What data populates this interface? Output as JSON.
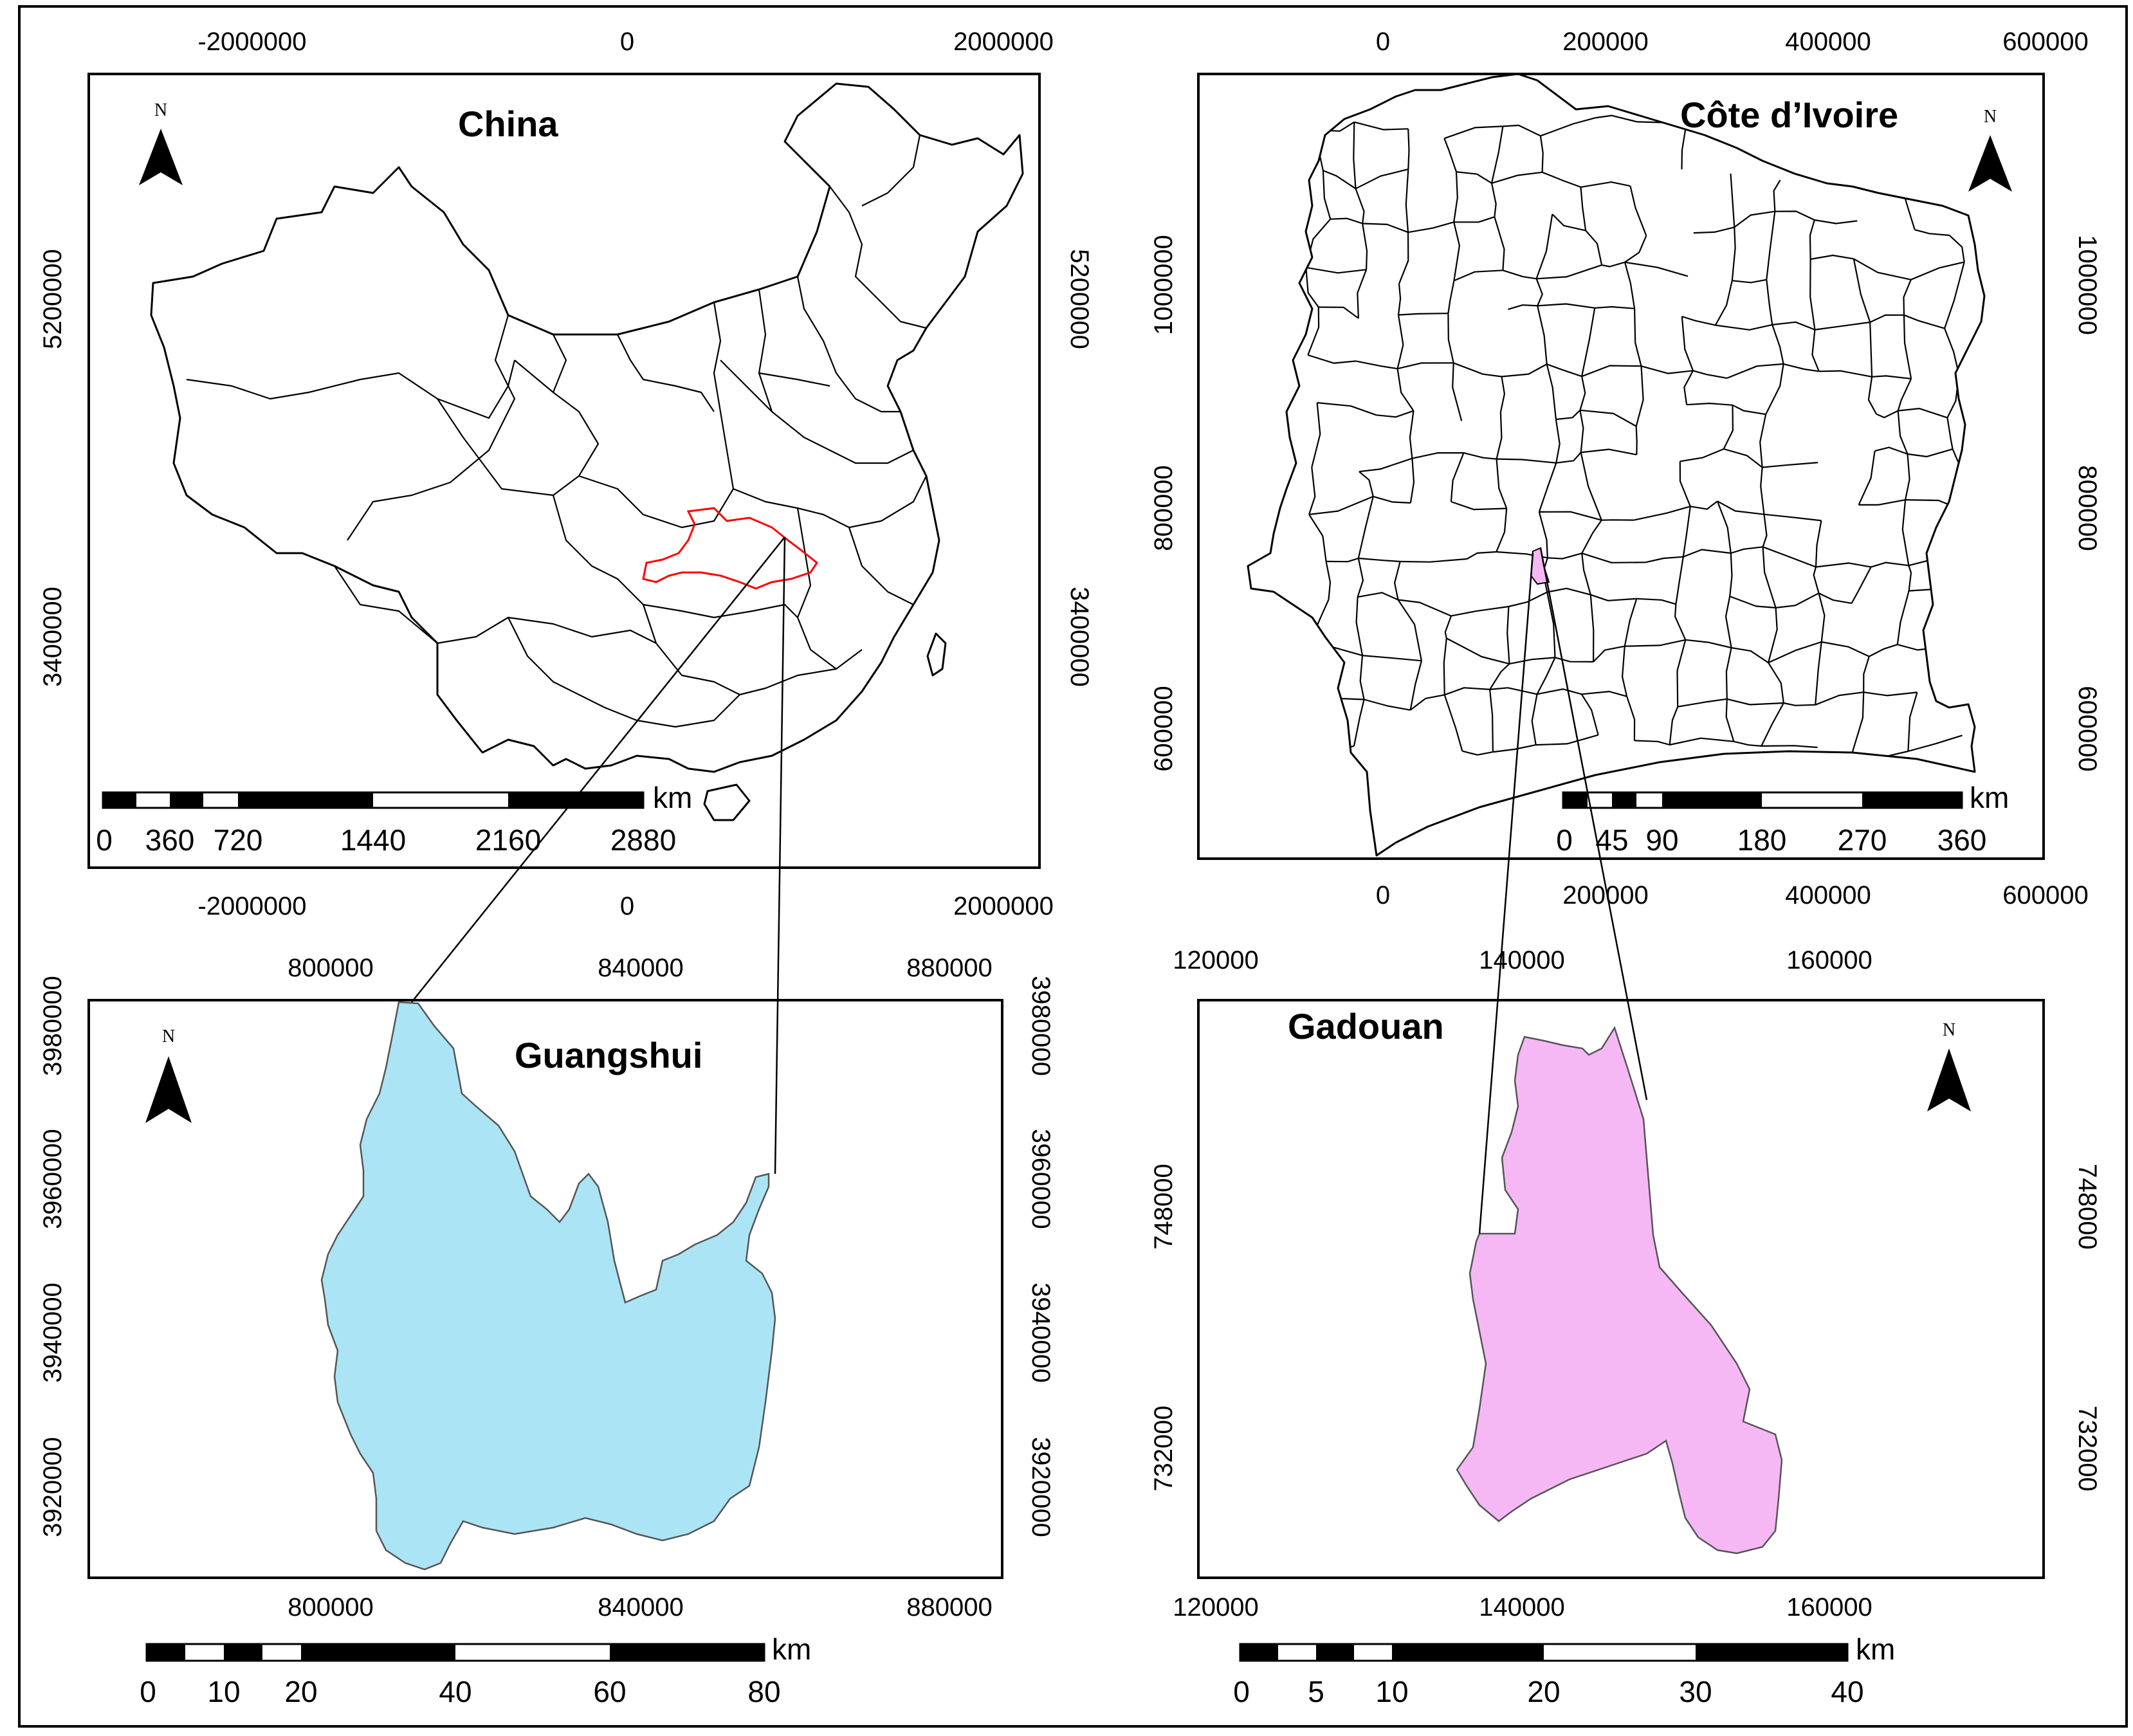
{
  "maps": {
    "china": {
      "title": "China",
      "highlight_color": "#ff0000",
      "x_ticks": [
        "-2000000",
        "0",
        "2000000"
      ],
      "y_ticks": [
        "5200000",
        "3400000"
      ],
      "scale": {
        "unit": "km",
        "labels": [
          "0",
          "360",
          "720",
          "1440",
          "2160",
          "2880"
        ]
      }
    },
    "cote": {
      "title": "Côte d’Ivoire",
      "highlight_color": "#f5b8f5",
      "x_ticks": [
        "0",
        "200000",
        "400000",
        "600000"
      ],
      "y_ticks": [
        "1000000",
        "800000",
        "600000"
      ],
      "scale": {
        "unit": "km",
        "labels": [
          "0",
          "45",
          "90",
          "180",
          "270",
          "360"
        ]
      }
    },
    "guangshui": {
      "title": "Guangshui",
      "fill_color": "#abe5f5",
      "x_ticks": [
        "800000",
        "840000",
        "880000"
      ],
      "y_ticks": [
        "3980000",
        "3960000",
        "3940000",
        "3920000"
      ],
      "scale": {
        "unit": "km",
        "labels": [
          "0",
          "10",
          "20",
          "40",
          "60",
          "80"
        ]
      }
    },
    "gadouan": {
      "title": "Gadouan",
      "fill_color": "#f5b8f5",
      "x_ticks": [
        "120000",
        "140000",
        "160000"
      ],
      "y_ticks": [
        "748000",
        "732000"
      ],
      "scale": {
        "unit": "km",
        "labels": [
          "0",
          "5",
          "10",
          "20",
          "30",
          "40"
        ]
      }
    }
  },
  "north_arrow": {
    "label": "N"
  }
}
